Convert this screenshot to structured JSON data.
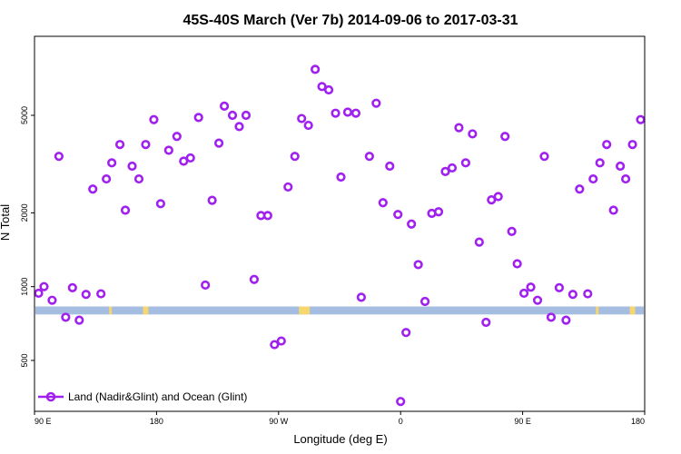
{
  "chart_data": {
    "type": "scatter",
    "title": "45S-40S March (Ver 7b)   2014-09-06 to 2017-03-31",
    "xlabel": "Longitude (deg E)",
    "ylabel": "N Total",
    "x_ticks": [
      {
        "value": 90,
        "label": "90 E"
      },
      {
        "value": 180,
        "label": "180"
      },
      {
        "value": 270,
        "label": "90 W"
      },
      {
        "value": 360,
        "label": "0"
      },
      {
        "value": 450,
        "label": "90 E"
      },
      {
        "value": 540,
        "label": "180"
      }
    ],
    "xlim": [
      90,
      540
    ],
    "y_scale": "log",
    "y_ticks": [
      500,
      1000,
      2000,
      5000
    ],
    "ylim": [
      310,
      10500
    ],
    "grid": false,
    "legend_position": "bottom-left",
    "colors": {
      "series": "#a020f0",
      "ocean": "#a4bde1",
      "land": "#f5d76e"
    },
    "band": {
      "y_low": 770,
      "y_high": 830
    },
    "land_segments": [
      [
        145,
        147
      ],
      [
        170,
        174
      ],
      [
        285,
        293
      ],
      [
        504,
        506
      ],
      [
        529,
        533
      ]
    ],
    "series": [
      {
        "name": "Land (Nadir&Glint) and Ocean (Glint)",
        "points": [
          [
            93,
            940
          ],
          [
            97,
            1000
          ],
          [
            103,
            880
          ],
          [
            108,
            3400
          ],
          [
            113,
            750
          ],
          [
            118,
            990
          ],
          [
            123,
            730
          ],
          [
            128,
            930
          ],
          [
            133,
            2500
          ],
          [
            139,
            935
          ],
          [
            143,
            2750
          ],
          [
            147,
            3200
          ],
          [
            153,
            3800
          ],
          [
            157,
            2050
          ],
          [
            162,
            3100
          ],
          [
            167,
            2750
          ],
          [
            172,
            3800
          ],
          [
            178,
            4800
          ],
          [
            183,
            2180
          ],
          [
            189,
            3600
          ],
          [
            195,
            4100
          ],
          [
            200,
            3250
          ],
          [
            205,
            3350
          ],
          [
            211,
            4900
          ],
          [
            216,
            1015
          ],
          [
            221,
            2250
          ],
          [
            226,
            3850
          ],
          [
            230,
            5450
          ],
          [
            236,
            5000
          ],
          [
            241,
            4500
          ],
          [
            246,
            5000
          ],
          [
            252,
            1070
          ],
          [
            257,
            1950
          ],
          [
            262,
            1950
          ],
          [
            267,
            580
          ],
          [
            272,
            600
          ],
          [
            277,
            2550
          ],
          [
            282,
            3400
          ],
          [
            287,
            4850
          ],
          [
            292,
            4550
          ],
          [
            297,
            7700
          ],
          [
            302,
            6550
          ],
          [
            307,
            6350
          ],
          [
            312,
            5100
          ],
          [
            316,
            2800
          ],
          [
            321,
            5150
          ],
          [
            327,
            5100
          ],
          [
            331,
            905
          ],
          [
            337,
            3400
          ],
          [
            342,
            5600
          ],
          [
            347,
            2200
          ],
          [
            352,
            3100
          ],
          [
            358,
            1970
          ],
          [
            360,
            340
          ],
          [
            364,
            650
          ],
          [
            368,
            1800
          ],
          [
            373,
            1230
          ],
          [
            378,
            870
          ],
          [
            383,
            1990
          ],
          [
            388,
            2020
          ],
          [
            393,
            2950
          ],
          [
            398,
            3050
          ],
          [
            403,
            4450
          ],
          [
            408,
            3200
          ],
          [
            413,
            4200
          ],
          [
            418,
            1520
          ],
          [
            423,
            715
          ],
          [
            427,
            2260
          ],
          [
            432,
            2330
          ],
          [
            437,
            4100
          ],
          [
            442,
            1680
          ],
          [
            446,
            1240
          ],
          [
            451,
            940
          ],
          [
            456,
            995
          ],
          [
            461,
            880
          ],
          [
            466,
            3400
          ],
          [
            471,
            750
          ],
          [
            477,
            990
          ],
          [
            482,
            730
          ],
          [
            487,
            930
          ],
          [
            492,
            2500
          ],
          [
            498,
            935
          ],
          [
            502,
            2750
          ],
          [
            507,
            3200
          ],
          [
            512,
            3800
          ],
          [
            517,
            2050
          ],
          [
            522,
            3100
          ],
          [
            526,
            2750
          ],
          [
            531,
            3800
          ],
          [
            537,
            4800
          ]
        ]
      }
    ]
  }
}
